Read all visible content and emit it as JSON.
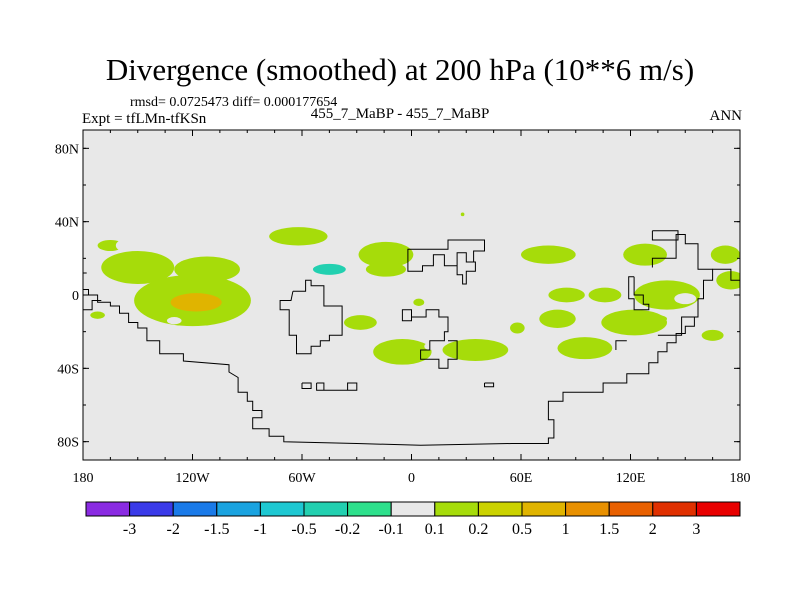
{
  "chart_data": {
    "type": "heatmap",
    "title": "Divergence (smoothed) at 200 hPa (10**6 m/s)",
    "subtitle_stats": "rmsd= 0.0725473 diff= 0.000177654",
    "subtitle_expt": "Expt = tfLMn-tfKSn",
    "subtitle_case": "455_7_MaBP - 455_7_MaBP",
    "subtitle_season": "ANN",
    "xlim": [
      -180,
      180
    ],
    "ylim": [
      -90,
      90
    ],
    "x_ticks": [
      {
        "value": -180,
        "label": "180"
      },
      {
        "value": -120,
        "label": "120W"
      },
      {
        "value": -60,
        "label": "60W"
      },
      {
        "value": 0,
        "label": "0"
      },
      {
        "value": 60,
        "label": "60E"
      },
      {
        "value": 120,
        "label": "120E"
      },
      {
        "value": 180,
        "label": "180"
      }
    ],
    "y_ticks": [
      {
        "value": 80,
        "label": "80N"
      },
      {
        "value": 40,
        "label": "40N"
      },
      {
        "value": 0,
        "label": "0"
      },
      {
        "value": -40,
        "label": "40S"
      },
      {
        "value": -80,
        "label": "80S"
      }
    ],
    "contour_levels": [
      "-3",
      "-2",
      "-1.5",
      "-1",
      "-0.5",
      "-0.2",
      "-0.1",
      "0.1",
      "0.2",
      "0.5",
      "1",
      "1.5",
      "2",
      "3"
    ],
    "colorbar_colors": [
      "#8a2be2",
      "#3a3ae8",
      "#1a7ae8",
      "#1aa3e0",
      "#1ec8d2",
      "#22d0b0",
      "#2ee08c",
      "#e8e8e8",
      "#a6dc0a",
      "#cbd200",
      "#e0b400",
      "#e89000",
      "#e86000",
      "#e03000",
      "#e80000"
    ],
    "map_background": "#e8e8e8",
    "regions": [
      {
        "lon": -150,
        "lat": 15,
        "rx": 20,
        "ry": 9,
        "level": "0.1"
      },
      {
        "lon": -165,
        "lat": 27,
        "rx": 7,
        "ry": 3,
        "level": "0.1"
      },
      {
        "lon": -120,
        "lat": -3,
        "rx": 32,
        "ry": 14,
        "level": "0.1"
      },
      {
        "lon": -118,
        "lat": -4,
        "rx": 14,
        "ry": 5,
        "level": "0.5"
      },
      {
        "lon": -112,
        "lat": 14,
        "rx": 18,
        "ry": 7,
        "level": "0.1"
      },
      {
        "lon": -75,
        "lat": 17,
        "rx": 13,
        "ry": 10,
        "level": "-0.1"
      },
      {
        "lon": -45,
        "lat": 14,
        "rx": 38,
        "ry": 11,
        "level": "-0.1"
      },
      {
        "lon": -45,
        "lat": 14,
        "rx": 9,
        "ry": 3,
        "level": "-0.5"
      },
      {
        "lon": -50,
        "lat": -3,
        "rx": 16,
        "ry": 6,
        "level": "-0.1"
      },
      {
        "lon": -62,
        "lat": 32,
        "rx": 16,
        "ry": 5,
        "level": "0.1"
      },
      {
        "lon": -95,
        "lat": 30,
        "rx": 10,
        "ry": 4,
        "level": "-0.1"
      },
      {
        "lon": -125,
        "lat": 32,
        "rx": 7,
        "ry": 4,
        "level": "-0.1"
      },
      {
        "lon": -158,
        "lat": 27,
        "rx": 4,
        "ry": 3,
        "level": "-0.1"
      },
      {
        "lon": -14,
        "lat": 22,
        "rx": 15,
        "ry": 7,
        "level": "0.1"
      },
      {
        "lon": -14,
        "lat": 14,
        "rx": 11,
        "ry": 4,
        "level": "0.1"
      },
      {
        "lon": -28,
        "lat": -15,
        "rx": 9,
        "ry": 4,
        "level": "0.1"
      },
      {
        "lon": 25,
        "lat": 24,
        "rx": 16,
        "ry": 7,
        "level": "-0.1"
      },
      {
        "lon": 75,
        "lat": 22,
        "rx": 15,
        "ry": 5,
        "level": "0.1"
      },
      {
        "lon": 46,
        "lat": 17,
        "rx": 8,
        "ry": 3,
        "level": "-0.1"
      },
      {
        "lon": 105,
        "lat": 22,
        "rx": 15,
        "ry": 7,
        "level": "-0.1"
      },
      {
        "lon": 128,
        "lat": 22,
        "rx": 12,
        "ry": 6,
        "level": "0.1"
      },
      {
        "lon": 156,
        "lat": 8,
        "rx": 12,
        "ry": 7,
        "level": "-0.1"
      },
      {
        "lon": 140,
        "lat": 0,
        "rx": 18,
        "ry": 8,
        "level": "0.1"
      },
      {
        "lon": 172,
        "lat": 22,
        "rx": 8,
        "ry": 5,
        "level": "0.1"
      },
      {
        "lon": 175,
        "lat": 8,
        "rx": 8,
        "ry": 5,
        "level": "0.1"
      },
      {
        "lon": 150,
        "lat": -2,
        "rx": 6,
        "ry": 3,
        "level": "-0.1"
      },
      {
        "lon": 106,
        "lat": 0,
        "rx": 9,
        "ry": 4,
        "level": "0.1"
      },
      {
        "lon": 80,
        "lat": -13,
        "rx": 10,
        "ry": 5,
        "level": "0.1"
      },
      {
        "lon": 122,
        "lat": -15,
        "rx": 18,
        "ry": 7,
        "level": "0.1"
      },
      {
        "lon": 135,
        "lat": -13,
        "rx": 5,
        "ry": 2,
        "level": "0.1"
      },
      {
        "lon": -5,
        "lat": -31,
        "rx": 16,
        "ry": 7,
        "level": "0.1"
      },
      {
        "lon": 35,
        "lat": -30,
        "rx": 18,
        "ry": 6,
        "level": "0.1"
      },
      {
        "lon": 95,
        "lat": -29,
        "rx": 15,
        "ry": 6,
        "level": "0.1"
      },
      {
        "lon": -130,
        "lat": -14,
        "rx": 4,
        "ry": 2,
        "level": "-0.1"
      },
      {
        "lon": -158,
        "lat": -12,
        "rx": 4,
        "ry": 2,
        "level": "-0.1"
      },
      {
        "lon": -172,
        "lat": -11,
        "rx": 4,
        "ry": 2,
        "level": "0.1"
      },
      {
        "lon": -140,
        "lat": -33,
        "rx": 2,
        "ry": 2,
        "level": "-0.1"
      },
      {
        "lon": 10,
        "lat": -28,
        "rx": 3,
        "ry": 2,
        "level": "-0.1"
      },
      {
        "lon": 130,
        "lat": -30,
        "rx": 6,
        "ry": 3,
        "level": "-0.1"
      },
      {
        "lon": 0,
        "lat": 6,
        "rx": 4,
        "ry": 3,
        "level": "-0.1"
      },
      {
        "lon": -175,
        "lat": 8,
        "rx": 5,
        "ry": 4,
        "level": "-0.1"
      },
      {
        "lon": 85,
        "lat": 0,
        "rx": 10,
        "ry": 4,
        "level": "0.1"
      },
      {
        "lon": 28,
        "lat": 44,
        "rx": 1,
        "ry": 1,
        "level": "0.1"
      },
      {
        "lon": -70,
        "lat": -12,
        "rx": 3,
        "ry": 2,
        "level": "-0.1"
      },
      {
        "lon": 4,
        "lat": -4,
        "rx": 3,
        "ry": 2,
        "level": "0.1"
      },
      {
        "lon": 165,
        "lat": -22,
        "rx": 6,
        "ry": 3,
        "level": "0.1"
      },
      {
        "lon": 58,
        "lat": -18,
        "rx": 4,
        "ry": 3,
        "level": "0.1"
      }
    ],
    "coastlines": [
      [
        [
          -180,
          3
        ],
        [
          -177,
          3
        ],
        [
          -177,
          0
        ],
        [
          -172,
          0
        ],
        [
          -172,
          -4
        ],
        [
          -165,
          -4
        ],
        [
          -165,
          -6
        ],
        [
          -160,
          -6
        ],
        [
          -160,
          -10
        ],
        [
          -155,
          -10
        ],
        [
          -155,
          -15
        ],
        [
          -150,
          -15
        ],
        [
          -150,
          -18
        ],
        [
          -145,
          -18
        ],
        [
          -145,
          -25
        ],
        [
          -138,
          -25
        ],
        [
          -138,
          -32
        ],
        [
          -130,
          -32
        ],
        [
          -125,
          -32
        ],
        [
          -125,
          -36
        ],
        [
          -100,
          -38
        ],
        [
          -100,
          -42
        ],
        [
          -95,
          -45
        ],
        [
          -95,
          -53
        ],
        [
          -90,
          -53
        ],
        [
          -90,
          -58
        ],
        [
          -87,
          -58
        ],
        [
          -87,
          -63
        ],
        [
          -82,
          -63
        ],
        [
          -82,
          -67
        ],
        [
          -87,
          -67
        ],
        [
          -87,
          -73
        ],
        [
          -78,
          -73
        ],
        [
          -78,
          -77
        ],
        [
          -70,
          -77
        ],
        [
          -70,
          -80
        ],
        [
          -30,
          -81
        ],
        [
          5,
          -82
        ],
        [
          55,
          -81
        ],
        [
          75,
          -81
        ],
        [
          75,
          -78
        ],
        [
          78,
          -78
        ],
        [
          78,
          -68
        ],
        [
          75,
          -68
        ],
        [
          75,
          -58
        ],
        [
          83,
          -58
        ],
        [
          83,
          -53
        ],
        [
          105,
          -53
        ],
        [
          105,
          -48
        ],
        [
          118,
          -48
        ],
        [
          118,
          -43
        ],
        [
          130,
          -43
        ],
        [
          130,
          -37
        ],
        [
          135,
          -37
        ],
        [
          135,
          -31
        ],
        [
          140,
          -31
        ],
        [
          140,
          -26
        ],
        [
          145,
          -26
        ],
        [
          145,
          -21
        ],
        [
          150,
          -21
        ],
        [
          150,
          -17
        ],
        [
          155,
          -17
        ],
        [
          155,
          -12
        ],
        [
          157,
          -12
        ],
        [
          157,
          -2
        ],
        [
          160,
          -2
        ],
        [
          160,
          8
        ],
        [
          165,
          8
        ],
        [
          165,
          14
        ],
        [
          175,
          14
        ],
        [
          175,
          8
        ],
        [
          180,
          8
        ]
      ],
      [
        [
          -180,
          -8
        ],
        [
          -175,
          -8
        ],
        [
          -175,
          -3
        ],
        [
          -170,
          -3
        ]
      ],
      [
        [
          -65,
          2
        ],
        [
          -58,
          2
        ],
        [
          -58,
          8
        ],
        [
          -55,
          8
        ],
        [
          -55,
          5
        ],
        [
          -48,
          5
        ],
        [
          -48,
          -6
        ],
        [
          -38,
          -6
        ],
        [
          -38,
          -22
        ],
        [
          -45,
          -22
        ],
        [
          -45,
          -25
        ],
        [
          -50,
          -25
        ],
        [
          -50,
          -28
        ],
        [
          -55,
          -28
        ],
        [
          -55,
          -32
        ],
        [
          -63,
          -32
        ],
        [
          -63,
          -22
        ],
        [
          -67,
          -22
        ],
        [
          -67,
          -8
        ],
        [
          -72,
          -8
        ],
        [
          -72,
          -3
        ],
        [
          -66,
          -3
        ],
        [
          -65,
          2
        ]
      ],
      [
        [
          -52,
          -48
        ],
        [
          -48,
          -48
        ],
        [
          -48,
          -52
        ],
        [
          -35,
          -52
        ],
        [
          -35,
          -48
        ],
        [
          -30,
          -48
        ],
        [
          -30,
          -52
        ],
        [
          -52,
          -52
        ],
        [
          -52,
          -48
        ]
      ],
      [
        [
          -60,
          -48
        ],
        [
          -55,
          -48
        ],
        [
          -55,
          -51
        ],
        [
          -60,
          -51
        ],
        [
          -60,
          -48
        ]
      ],
      [
        [
          -2,
          18
        ],
        [
          -2,
          13
        ],
        [
          6,
          13
        ],
        [
          6,
          16
        ],
        [
          12,
          16
        ],
        [
          12,
          22
        ],
        [
          18,
          22
        ],
        [
          18,
          16
        ],
        [
          25,
          16
        ],
        [
          25,
          23
        ],
        [
          30,
          23
        ],
        [
          30,
          18
        ],
        [
          35,
          18
        ],
        [
          35,
          13
        ],
        [
          30,
          13
        ],
        [
          30,
          6
        ],
        [
          28,
          6
        ],
        [
          28,
          11
        ],
        [
          25,
          11
        ],
        [
          25,
          16
        ]
      ],
      [
        [
          -2,
          18
        ],
        [
          -2,
          25
        ],
        [
          20,
          25
        ],
        [
          20,
          30
        ],
        [
          40,
          30
        ],
        [
          40,
          24
        ],
        [
          34,
          24
        ],
        [
          34,
          18
        ],
        [
          35,
          18
        ]
      ],
      [
        [
          0,
          -12
        ],
        [
          0,
          -8
        ],
        [
          -5,
          -8
        ],
        [
          -5,
          -14
        ],
        [
          0,
          -14
        ],
        [
          0,
          -12
        ],
        [
          8,
          -12
        ],
        [
          8,
          -8
        ],
        [
          15,
          -8
        ],
        [
          15,
          -12
        ],
        [
          20,
          -12
        ],
        [
          20,
          -20
        ],
        [
          18,
          -20
        ],
        [
          18,
          -25
        ],
        [
          10,
          -25
        ],
        [
          10,
          -30
        ],
        [
          5,
          -30
        ],
        [
          5,
          -35
        ],
        [
          15,
          -35
        ],
        [
          15,
          -40
        ],
        [
          20,
          -40
        ],
        [
          20,
          -35
        ],
        [
          25,
          -35
        ],
        [
          25,
          -25
        ],
        [
          20,
          -25
        ]
      ],
      [
        [
          40,
          -48
        ],
        [
          45,
          -48
        ],
        [
          45,
          -50
        ],
        [
          40,
          -50
        ],
        [
          40,
          -48
        ]
      ],
      [
        [
          132,
          15
        ],
        [
          132,
          20
        ],
        [
          145,
          20
        ],
        [
          145,
          33
        ],
        [
          150,
          33
        ],
        [
          150,
          28
        ],
        [
          157,
          28
        ],
        [
          157,
          14
        ],
        [
          165,
          14
        ]
      ],
      [
        [
          132,
          35
        ],
        [
          132,
          30
        ],
        [
          146,
          30
        ],
        [
          146,
          35
        ],
        [
          132,
          35
        ]
      ],
      [
        [
          122,
          10
        ],
        [
          122,
          0
        ],
        [
          127,
          0
        ],
        [
          127,
          -5
        ],
        [
          130,
          -5
        ],
        [
          130,
          -8
        ],
        [
          122,
          -8
        ],
        [
          122,
          -2
        ],
        [
          119,
          -2
        ],
        [
          119,
          10
        ],
        [
          122,
          10
        ]
      ],
      [
        [
          155,
          -12
        ],
        [
          148,
          -12
        ],
        [
          148,
          -22
        ],
        [
          135,
          -22
        ]
      ],
      [
        [
          112,
          -30
        ],
        [
          112,
          -25
        ],
        [
          118,
          -25
        ]
      ],
      [
        [
          -180,
          12
        ],
        [
          -178,
          12
        ]
      ]
    ]
  }
}
